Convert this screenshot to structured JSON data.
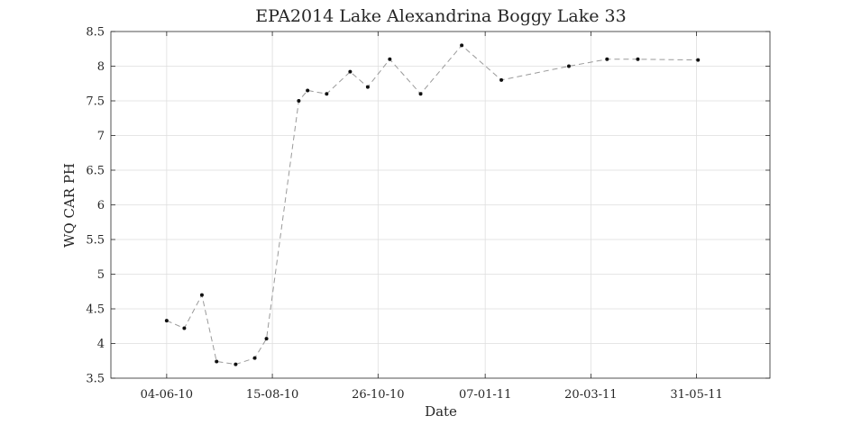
{
  "chart_data": {
    "type": "line",
    "title": "EPA2014 Lake Alexandrina Boggy Lake 33",
    "xlabel": "Date",
    "ylabel": "WQ CAR PH",
    "x_tick_labels": [
      "04-06-10",
      "15-08-10",
      "26-10-10",
      "07-01-11",
      "20-03-11",
      "31-05-11"
    ],
    "x_tick_day_offsets": [
      0,
      72,
      144,
      217,
      289,
      361
    ],
    "xlim_day_offsets": [
      -38,
      411
    ],
    "ylim": [
      3.5,
      8.5
    ],
    "y_ticks": [
      3.5,
      4,
      4.5,
      5,
      5.5,
      6,
      6.5,
      7,
      7.5,
      8,
      8.5
    ],
    "y_tick_labels": [
      "3.5",
      "4",
      "4.5",
      "5",
      "5.5",
      "6",
      "6.5",
      "7",
      "7.5",
      "8",
      "8.5"
    ],
    "grid": true,
    "series": [
      {
        "name": "WQ CAR PH",
        "line_style": "dashed",
        "line_color": "#9a9a9a",
        "marker_color": "#111111",
        "points": [
          {
            "day": 0,
            "value": 4.33
          },
          {
            "day": 12,
            "value": 4.22
          },
          {
            "day": 24,
            "value": 4.7
          },
          {
            "day": 34,
            "value": 3.74
          },
          {
            "day": 47,
            "value": 3.7
          },
          {
            "day": 60,
            "value": 3.79
          },
          {
            "day": 68,
            "value": 4.07
          },
          {
            "day": 90,
            "value": 7.5
          },
          {
            "day": 96,
            "value": 7.65
          },
          {
            "day": 109,
            "value": 7.6
          },
          {
            "day": 125,
            "value": 7.92
          },
          {
            "day": 137,
            "value": 7.7
          },
          {
            "day": 152,
            "value": 8.1
          },
          {
            "day": 173,
            "value": 7.6
          },
          {
            "day": 201,
            "value": 8.3
          },
          {
            "day": 228,
            "value": 7.8
          },
          {
            "day": 274,
            "value": 8.0
          },
          {
            "day": 300,
            "value": 8.1
          },
          {
            "day": 321,
            "value": 8.1
          },
          {
            "day": 362,
            "value": 8.09
          }
        ]
      }
    ]
  }
}
